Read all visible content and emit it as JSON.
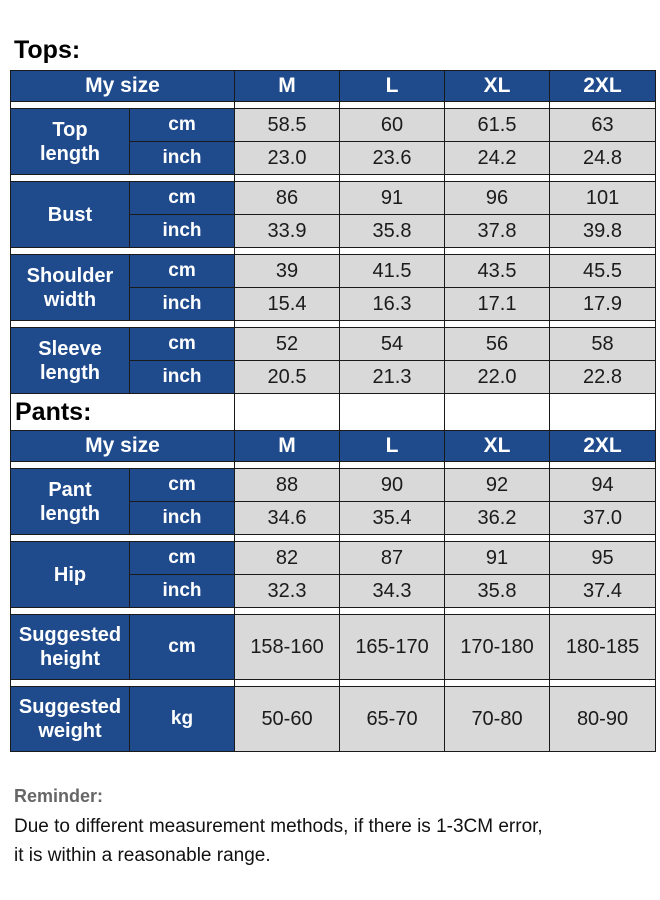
{
  "tops": {
    "title": "Tops:",
    "header": {
      "label": "My size",
      "sizes": [
        "M",
        "L",
        "XL",
        "2XL"
      ]
    },
    "groups": [
      {
        "label_lines": [
          "Top",
          "length"
        ],
        "rows": [
          {
            "unit": "cm",
            "values": [
              "58.5",
              "60",
              "61.5",
              "63"
            ]
          },
          {
            "unit": "inch",
            "values": [
              "23.0",
              "23.6",
              "24.2",
              "24.8"
            ]
          }
        ]
      },
      {
        "label_lines": [
          "Bust"
        ],
        "rows": [
          {
            "unit": "cm",
            "values": [
              "86",
              "91",
              "96",
              "101"
            ]
          },
          {
            "unit": "inch",
            "values": [
              "33.9",
              "35.8",
              "37.8",
              "39.8"
            ]
          }
        ]
      },
      {
        "label_lines": [
          "Shoulder",
          "width"
        ],
        "rows": [
          {
            "unit": "cm",
            "values": [
              "39",
              "41.5",
              "43.5",
              "45.5"
            ]
          },
          {
            "unit": "inch",
            "values": [
              "15.4",
              "16.3",
              "17.1",
              "17.9"
            ]
          }
        ]
      },
      {
        "label_lines": [
          "Sleeve",
          "length"
        ],
        "rows": [
          {
            "unit": "cm",
            "values": [
              "52",
              "54",
              "56",
              "58"
            ]
          },
          {
            "unit": "inch",
            "values": [
              "20.5",
              "21.3",
              "22.0",
              "22.8"
            ]
          }
        ]
      }
    ]
  },
  "pants": {
    "title": "Pants:",
    "header": {
      "label": "My size",
      "sizes": [
        "M",
        "L",
        "XL",
        "2XL"
      ]
    },
    "groups": [
      {
        "label_lines": [
          "Pant",
          "length"
        ],
        "rows": [
          {
            "unit": "cm",
            "values": [
              "88",
              "90",
              "92",
              "94"
            ]
          },
          {
            "unit": "inch",
            "values": [
              "34.6",
              "35.4",
              "36.2",
              "37.0"
            ]
          }
        ]
      },
      {
        "label_lines": [
          "Hip"
        ],
        "rows": [
          {
            "unit": "cm",
            "values": [
              "82",
              "87",
              "91",
              "95"
            ]
          },
          {
            "unit": "inch",
            "values": [
              "32.3",
              "34.3",
              "35.8",
              "37.4"
            ]
          }
        ]
      },
      {
        "label_lines": [
          "Suggested",
          "height"
        ],
        "rows": [
          {
            "unit": "cm",
            "values": [
              "158-160",
              "165-170",
              "170-180",
              "180-185"
            ]
          }
        ]
      },
      {
        "label_lines": [
          "Suggested",
          "weight"
        ],
        "rows": [
          {
            "unit": "kg",
            "values": [
              "50-60",
              "65-70",
              "70-80",
              "80-90"
            ]
          }
        ]
      }
    ]
  },
  "reminder": {
    "title": "Reminder:",
    "text_lines": [
      "Due to different measurement methods, if there is 1-3CM error,",
      "it is within a reasonable range."
    ]
  },
  "colors": {
    "header_blue": "#1f4b8d",
    "value_gray": "#d9d9d9",
    "reminder_gray": "#666666"
  }
}
